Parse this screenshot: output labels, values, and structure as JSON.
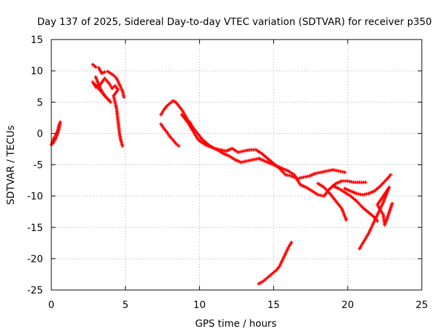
{
  "chart_data": {
    "type": "scatter",
    "title": "Day 137 of 2025, Sidereal Day-to-day VTEC variation (SDTVAR) for receiver p350",
    "xlabel": "GPS time / hours",
    "ylabel": "SDTVAR / TECUs",
    "xlim": [
      0,
      25
    ],
    "ylim": [
      -25,
      15
    ],
    "xticks": [
      0,
      5,
      10,
      15,
      20,
      25
    ],
    "yticks": [
      15,
      10,
      5,
      0,
      -5,
      -10,
      -15,
      -20,
      -25
    ],
    "grid": true,
    "marker": "+",
    "color": "#ff0000",
    "series": [
      {
        "name": "arc-1",
        "points": [
          [
            0.0,
            -1.8
          ],
          [
            0.1,
            -1.2
          ],
          [
            0.2,
            -0.6
          ],
          [
            0.3,
            -0.2
          ],
          [
            0.4,
            0.3
          ],
          [
            0.5,
            1.2
          ],
          [
            0.6,
            1.8
          ],
          [
            0.5,
            0.6
          ],
          [
            0.3,
            -0.8
          ],
          [
            0.1,
            -1.6
          ]
        ]
      },
      {
        "name": "arc-2",
        "points": [
          [
            2.8,
            11.0
          ],
          [
            3.0,
            10.6
          ],
          [
            3.2,
            10.5
          ],
          [
            3.4,
            9.6
          ],
          [
            3.6,
            9.8
          ],
          [
            3.8,
            9.9
          ],
          [
            4.0,
            9.6
          ],
          [
            4.2,
            9.3
          ],
          [
            4.4,
            8.8
          ],
          [
            4.6,
            7.8
          ],
          [
            4.8,
            6.8
          ],
          [
            4.9,
            5.8
          ],
          [
            3.0,
            9.0
          ],
          [
            3.2,
            7.8
          ],
          [
            3.4,
            6.8
          ],
          [
            3.6,
            6.0
          ],
          [
            3.8,
            5.5
          ],
          [
            4.0,
            5.0
          ],
          [
            2.8,
            8.2
          ],
          [
            3.0,
            7.4
          ],
          [
            3.3,
            7.8
          ],
          [
            3.6,
            8.8
          ],
          [
            3.9,
            8.0
          ],
          [
            4.1,
            7.2
          ],
          [
            4.3,
            7.6
          ],
          [
            4.5,
            7.0
          ],
          [
            4.2,
            6.0
          ],
          [
            4.4,
            4.0
          ],
          [
            4.5,
            2.0
          ],
          [
            4.6,
            0.0
          ],
          [
            4.7,
            -1.2
          ],
          [
            4.8,
            -2.0
          ]
        ]
      },
      {
        "name": "arc-3",
        "points": [
          [
            7.4,
            3.0
          ],
          [
            7.6,
            3.8
          ],
          [
            7.8,
            4.4
          ],
          [
            8.0,
            4.8
          ],
          [
            8.2,
            5.2
          ],
          [
            8.4,
            5.0
          ],
          [
            8.6,
            4.4
          ],
          [
            8.8,
            3.8
          ],
          [
            9.0,
            3.0
          ],
          [
            9.2,
            2.2
          ],
          [
            9.4,
            1.6
          ],
          [
            9.6,
            0.8
          ],
          [
            9.8,
            0.2
          ],
          [
            10.0,
            -0.4
          ],
          [
            10.2,
            -1.0
          ],
          [
            10.6,
            -1.8
          ],
          [
            11.0,
            -2.4
          ],
          [
            11.4,
            -2.6
          ],
          [
            11.8,
            -2.8
          ],
          [
            12.2,
            -2.4
          ],
          [
            12.6,
            -3.0
          ],
          [
            13.0,
            -2.8
          ],
          [
            13.4,
            -2.6
          ],
          [
            13.8,
            -2.6
          ],
          [
            14.2,
            -3.2
          ],
          [
            14.6,
            -4.0
          ],
          [
            15.0,
            -4.8
          ],
          [
            15.4,
            -5.6
          ],
          [
            15.8,
            -6.6
          ],
          [
            16.2,
            -6.8
          ],
          [
            16.6,
            -7.2
          ],
          [
            17.0,
            -7.0
          ],
          [
            17.4,
            -6.8
          ],
          [
            17.8,
            -6.4
          ],
          [
            18.2,
            -6.2
          ],
          [
            18.6,
            -6.0
          ],
          [
            19.0,
            -5.8
          ],
          [
            19.4,
            -6.0
          ],
          [
            19.8,
            -6.2
          ],
          [
            7.4,
            1.5
          ],
          [
            7.6,
            0.8
          ],
          [
            7.8,
            0.2
          ],
          [
            8.0,
            -0.5
          ],
          [
            8.2,
            -1.0
          ],
          [
            8.4,
            -1.6
          ],
          [
            8.6,
            -2.0
          ],
          [
            8.8,
            3.0
          ],
          [
            9.0,
            2.4
          ],
          [
            9.2,
            1.8
          ],
          [
            9.4,
            1.0
          ],
          [
            9.6,
            0.2
          ],
          [
            9.8,
            -0.6
          ],
          [
            10.0,
            -1.2
          ],
          [
            10.4,
            -1.8
          ],
          [
            10.8,
            -2.2
          ],
          [
            11.2,
            -2.6
          ],
          [
            11.6,
            -3.2
          ],
          [
            12.0,
            -3.6
          ],
          [
            12.4,
            -4.2
          ],
          [
            12.8,
            -4.6
          ],
          [
            13.2,
            -4.4
          ],
          [
            13.6,
            -4.2
          ],
          [
            14.0,
            -4.0
          ],
          [
            14.4,
            -4.4
          ],
          [
            14.8,
            -4.8
          ],
          [
            15.2,
            -5.2
          ],
          [
            15.6,
            -5.6
          ],
          [
            16.0,
            -6.0
          ],
          [
            16.4,
            -6.6
          ],
          [
            16.8,
            -8.2
          ],
          [
            17.2,
            -8.6
          ],
          [
            17.6,
            -9.2
          ],
          [
            18.0,
            -9.8
          ],
          [
            18.4,
            -10.0
          ],
          [
            18.8,
            -8.8
          ],
          [
            19.2,
            -8.0
          ],
          [
            19.6,
            -7.6
          ],
          [
            20.0,
            -7.6
          ],
          [
            20.4,
            -7.8
          ],
          [
            20.8,
            -7.8
          ],
          [
            21.2,
            -7.8
          ],
          [
            18.0,
            -8.0
          ],
          [
            18.4,
            -8.6
          ],
          [
            18.8,
            -9.6
          ],
          [
            19.2,
            -10.8
          ],
          [
            19.6,
            -12.0
          ],
          [
            19.9,
            -13.8
          ],
          [
            19.0,
            -8.4
          ],
          [
            19.4,
            -8.8
          ],
          [
            19.8,
            -9.4
          ],
          [
            20.2,
            -10.0
          ],
          [
            20.6,
            -10.8
          ],
          [
            21.0,
            -11.8
          ],
          [
            21.4,
            -12.6
          ],
          [
            21.8,
            -13.4
          ],
          [
            22.0,
            -14.0
          ],
          [
            19.8,
            -8.8
          ],
          [
            20.2,
            -9.2
          ],
          [
            20.6,
            -9.6
          ],
          [
            21.0,
            -9.8
          ],
          [
            21.4,
            -9.6
          ],
          [
            21.8,
            -9.2
          ],
          [
            22.2,
            -8.4
          ],
          [
            22.6,
            -7.4
          ],
          [
            22.9,
            -6.6
          ],
          [
            20.8,
            -18.4
          ],
          [
            21.0,
            -17.6
          ],
          [
            21.2,
            -16.8
          ],
          [
            21.4,
            -16.0
          ],
          [
            21.6,
            -15.0
          ],
          [
            21.8,
            -14.0
          ],
          [
            22.0,
            -13.0
          ],
          [
            22.2,
            -12.0
          ],
          [
            22.4,
            -11.0
          ],
          [
            22.6,
            -9.8
          ],
          [
            22.8,
            -8.6
          ],
          [
            22.0,
            -11.4
          ],
          [
            22.2,
            -12.2
          ],
          [
            22.4,
            -13.0
          ],
          [
            22.5,
            -14.6
          ],
          [
            22.6,
            -14.0
          ],
          [
            22.8,
            -12.6
          ],
          [
            23.0,
            -11.2
          ]
        ]
      },
      {
        "name": "arc-4",
        "points": [
          [
            14.0,
            -24.0
          ],
          [
            14.3,
            -23.6
          ],
          [
            14.6,
            -23.0
          ],
          [
            14.9,
            -22.4
          ],
          [
            15.2,
            -21.8
          ],
          [
            15.4,
            -21.2
          ],
          [
            15.6,
            -20.2
          ],
          [
            15.8,
            -19.2
          ],
          [
            16.0,
            -18.2
          ],
          [
            16.2,
            -17.4
          ]
        ]
      }
    ]
  }
}
